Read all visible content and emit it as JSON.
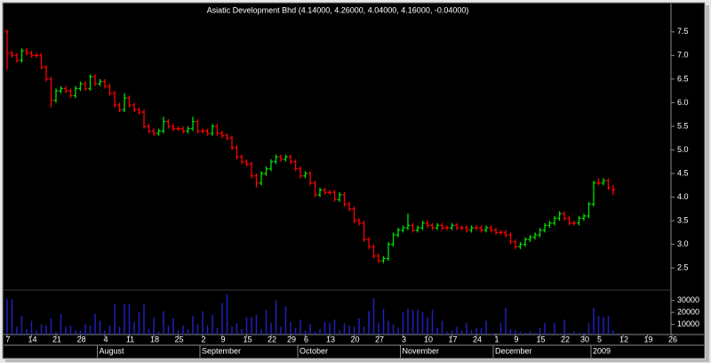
{
  "chart_data": {
    "type": "ohlc",
    "title": "Asiatic Development Bhd (4.14000, 4.26000, 4.04000, 4.16000, -0.04000)",
    "categories": [
      "7",
      null,
      null,
      null,
      null,
      "14",
      null,
      null,
      null,
      null,
      "21",
      null,
      null,
      null,
      null,
      "28",
      null,
      null,
      null,
      null,
      "4",
      null,
      null,
      null,
      null,
      "11",
      null,
      null,
      null,
      null,
      "18",
      null,
      null,
      null,
      null,
      "25",
      null,
      null,
      null,
      null,
      "2",
      null,
      null,
      null,
      "9",
      null,
      null,
      null,
      null,
      "15",
      null,
      null,
      null,
      null,
      "22",
      null,
      null,
      null,
      "29",
      null,
      null,
      "6",
      null,
      null,
      null,
      null,
      "13",
      null,
      null,
      null,
      null,
      "20",
      null,
      null,
      null,
      null,
      "27",
      null,
      null,
      null,
      null,
      "3",
      null,
      null,
      null,
      null,
      "10",
      null,
      null,
      null,
      null,
      "17",
      null,
      null,
      null,
      null,
      "24",
      null,
      null,
      null,
      "1",
      null,
      null,
      null,
      "9",
      null,
      null,
      null,
      null,
      "15",
      null,
      null,
      null,
      null,
      "22",
      null,
      null,
      null,
      "30",
      null,
      null,
      "5",
      null,
      null,
      null,
      null,
      "12",
      null,
      null,
      null,
      null,
      "19",
      null,
      null,
      null,
      null,
      "26"
    ],
    "months": [
      null,
      null,
      null,
      null,
      null,
      null,
      null,
      null,
      null,
      null,
      null,
      null,
      null,
      null,
      null,
      null,
      null,
      null,
      null,
      "August",
      null,
      null,
      null,
      null,
      null,
      null,
      null,
      null,
      null,
      null,
      null,
      null,
      null,
      null,
      null,
      null,
      null,
      null,
      null,
      null,
      "September",
      null,
      null,
      null,
      null,
      null,
      null,
      null,
      null,
      null,
      null,
      null,
      null,
      null,
      null,
      null,
      null,
      null,
      null,
      null,
      "October",
      null,
      null,
      null,
      null,
      null,
      null,
      null,
      null,
      null,
      null,
      null,
      null,
      null,
      null,
      null,
      null,
      null,
      null,
      null,
      null,
      "November",
      null,
      null,
      null,
      null,
      null,
      null,
      null,
      null,
      null,
      null,
      null,
      null,
      null,
      null,
      null,
      null,
      null,
      null,
      "December",
      null,
      null,
      null,
      null,
      null,
      null,
      null,
      null,
      null,
      null,
      null,
      null,
      null,
      null,
      null,
      null,
      null,
      null,
      null,
      "2009",
      null,
      null,
      null,
      null,
      null,
      null,
      null,
      null,
      null,
      null,
      null,
      null,
      null,
      null,
      null,
      null
    ],
    "open": [
      7.5,
      7.05,
      7.0,
      6.9,
      7.1,
      7.05,
      7.0,
      7.0,
      6.75,
      6.5,
      6.05,
      6.25,
      6.3,
      6.25,
      6.15,
      6.3,
      6.4,
      6.3,
      6.55,
      6.4,
      6.45,
      6.35,
      6.2,
      5.95,
      5.85,
      6.1,
      5.95,
      5.85,
      5.8,
      5.5,
      5.4,
      5.35,
      5.4,
      5.6,
      5.5,
      5.45,
      5.45,
      5.4,
      5.45,
      5.6,
      5.4,
      5.4,
      5.35,
      5.5,
      5.35,
      5.3,
      5.25,
      5.05,
      4.85,
      4.75,
      4.7,
      4.45,
      4.3,
      4.5,
      4.6,
      4.75,
      4.85,
      4.8,
      4.85,
      4.75,
      4.6,
      4.45,
      4.5,
      4.3,
      4.05,
      4.15,
      4.1,
      4.1,
      3.95,
      4.05,
      3.85,
      3.75,
      3.5,
      3.45,
      3.1,
      2.95,
      2.75,
      2.65,
      2.7,
      3.0,
      3.2,
      3.3,
      3.35,
      3.4,
      3.3,
      3.35,
      3.45,
      3.4,
      3.35,
      3.4,
      3.35,
      3.35,
      3.4,
      3.35,
      3.35,
      3.3,
      3.35,
      3.35,
      3.3,
      3.35,
      3.3,
      3.25,
      3.25,
      3.2,
      3.05,
      2.95,
      3.0,
      3.1,
      3.15,
      3.2,
      3.3,
      3.4,
      3.45,
      3.55,
      3.65,
      3.55,
      3.45,
      3.45,
      3.55,
      3.6,
      3.85,
      4.3,
      4.3,
      4.35,
      4.14,
      null,
      null,
      null,
      null,
      null,
      null,
      null,
      null,
      null,
      null,
      null,
      null
    ],
    "high": [
      7.55,
      7.1,
      7.05,
      7.15,
      7.15,
      7.1,
      7.05,
      7.05,
      6.8,
      6.55,
      6.3,
      6.35,
      6.35,
      6.3,
      6.35,
      6.45,
      6.45,
      6.6,
      6.6,
      6.5,
      6.5,
      6.4,
      6.25,
      6.0,
      6.2,
      6.15,
      6.0,
      5.9,
      5.85,
      5.55,
      5.45,
      5.45,
      5.7,
      5.65,
      5.55,
      5.5,
      5.5,
      5.5,
      5.7,
      5.65,
      5.45,
      5.45,
      5.55,
      5.55,
      5.4,
      5.35,
      5.3,
      5.1,
      4.9,
      4.8,
      4.75,
      4.5,
      4.55,
      4.65,
      4.8,
      4.9,
      4.9,
      4.9,
      4.9,
      4.8,
      4.65,
      4.55,
      4.55,
      4.35,
      4.2,
      4.2,
      4.15,
      4.15,
      4.1,
      4.1,
      3.9,
      3.8,
      3.55,
      3.5,
      3.15,
      3.0,
      2.8,
      2.75,
      3.05,
      3.25,
      3.35,
      3.4,
      3.65,
      3.45,
      3.4,
      3.5,
      3.5,
      3.45,
      3.45,
      3.45,
      3.4,
      3.45,
      3.45,
      3.4,
      3.4,
      3.4,
      3.4,
      3.4,
      3.4,
      3.4,
      3.35,
      3.3,
      3.3,
      3.25,
      3.1,
      3.05,
      3.15,
      3.2,
      3.25,
      3.35,
      3.45,
      3.5,
      3.6,
      3.7,
      3.7,
      3.6,
      3.5,
      3.6,
      3.65,
      3.9,
      4.35,
      4.4,
      4.4,
      4.4,
      4.26,
      null,
      null,
      null,
      null,
      null,
      null,
      null,
      null,
      null,
      null,
      null,
      null
    ],
    "low": [
      6.7,
      6.95,
      6.85,
      6.85,
      7.0,
      6.95,
      6.95,
      6.7,
      6.45,
      5.9,
      6.0,
      6.2,
      6.2,
      6.1,
      6.1,
      6.25,
      6.25,
      6.25,
      6.35,
      6.35,
      6.3,
      6.15,
      5.9,
      5.8,
      5.8,
      5.9,
      5.8,
      5.75,
      5.45,
      5.35,
      5.3,
      5.3,
      5.35,
      5.45,
      5.4,
      5.4,
      5.35,
      5.35,
      5.4,
      5.35,
      5.35,
      5.3,
      5.3,
      5.3,
      5.25,
      5.2,
      5.0,
      4.8,
      4.7,
      4.65,
      4.4,
      4.2,
      4.25,
      4.45,
      4.55,
      4.7,
      4.75,
      4.75,
      4.7,
      4.55,
      4.4,
      4.4,
      4.25,
      4.0,
      4.0,
      4.05,
      4.05,
      3.9,
      3.9,
      3.8,
      3.7,
      3.45,
      3.4,
      3.05,
      2.9,
      2.7,
      2.6,
      2.6,
      2.65,
      2.95,
      3.15,
      3.25,
      3.3,
      3.25,
      3.25,
      3.3,
      3.35,
      3.3,
      3.3,
      3.3,
      3.3,
      3.3,
      3.3,
      3.3,
      3.25,
      3.25,
      3.3,
      3.25,
      3.25,
      3.25,
      3.2,
      3.2,
      3.15,
      3.0,
      2.9,
      2.9,
      2.95,
      3.05,
      3.1,
      3.15,
      3.25,
      3.35,
      3.4,
      3.5,
      3.5,
      3.4,
      3.4,
      3.4,
      3.5,
      3.55,
      3.8,
      4.25,
      4.25,
      4.15,
      4.04,
      null,
      null,
      null,
      null,
      null,
      null,
      null,
      null,
      null,
      null,
      null,
      null
    ],
    "close": [
      7.05,
      7.0,
      6.9,
      7.1,
      7.05,
      7.0,
      7.0,
      6.75,
      6.5,
      6.05,
      6.25,
      6.3,
      6.25,
      6.15,
      6.3,
      6.4,
      6.3,
      6.55,
      6.4,
      6.45,
      6.35,
      6.2,
      5.95,
      5.85,
      6.1,
      5.95,
      5.85,
      5.8,
      5.5,
      5.4,
      5.35,
      5.4,
      5.6,
      5.5,
      5.45,
      5.45,
      5.4,
      5.45,
      5.6,
      5.4,
      5.4,
      5.35,
      5.5,
      5.35,
      5.3,
      5.25,
      5.05,
      4.85,
      4.75,
      4.7,
      4.45,
      4.3,
      4.5,
      4.6,
      4.75,
      4.85,
      4.8,
      4.85,
      4.75,
      4.6,
      4.45,
      4.5,
      4.3,
      4.05,
      4.15,
      4.1,
      4.1,
      3.95,
      4.05,
      3.85,
      3.75,
      3.5,
      3.45,
      3.1,
      2.95,
      2.75,
      2.65,
      2.7,
      3.0,
      3.2,
      3.3,
      3.35,
      3.4,
      3.3,
      3.35,
      3.45,
      3.4,
      3.35,
      3.4,
      3.35,
      3.35,
      3.4,
      3.35,
      3.35,
      3.3,
      3.35,
      3.35,
      3.3,
      3.35,
      3.3,
      3.25,
      3.25,
      3.2,
      3.05,
      2.95,
      3.0,
      3.1,
      3.15,
      3.2,
      3.3,
      3.4,
      3.45,
      3.55,
      3.65,
      3.55,
      3.45,
      3.45,
      3.55,
      3.6,
      3.85,
      4.3,
      4.3,
      4.35,
      4.2,
      4.16,
      null,
      null,
      null,
      null,
      null,
      null,
      null,
      null,
      null,
      null,
      null,
      null
    ],
    "volume": [
      31000,
      31000,
      8000,
      17000,
      6000,
      13000,
      5000,
      10000,
      9000,
      15000,
      4000,
      19000,
      8000,
      9000,
      5000,
      5000,
      10000,
      9000,
      19000,
      13000,
      5000,
      9000,
      27000,
      8000,
      27000,
      27000,
      12000,
      20000,
      27000,
      6000,
      16000,
      4000,
      21000,
      9000,
      15000,
      5000,
      9000,
      6000,
      17000,
      10000,
      21000,
      9000,
      18000,
      7000,
      28000,
      35000,
      8000,
      11000,
      6000,
      16000,
      16000,
      18000,
      6000,
      22000,
      11000,
      30000,
      8000,
      25000,
      12000,
      7000,
      14000,
      5000,
      10000,
      4000,
      6000,
      12000,
      11000,
      14000,
      5000,
      11000,
      9000,
      8000,
      15000,
      8000,
      21000,
      32000,
      11000,
      23000,
      13000,
      10000,
      7000,
      20000,
      23000,
      22000,
      22000,
      20000,
      16000,
      22000,
      7000,
      13000,
      4000,
      5000,
      8000,
      5000,
      11000,
      5000,
      7000,
      7000,
      13000,
      2000,
      3000,
      11000,
      24000,
      6000,
      5000,
      4000,
      3000,
      4000,
      3000,
      7000,
      11000,
      3000,
      11000,
      2000,
      14000,
      3000,
      4000,
      3000,
      3000,
      11000,
      24000,
      17000,
      16000,
      17000,
      5000,
      null,
      null,
      null,
      null,
      null,
      null,
      null,
      null,
      null,
      null,
      null,
      null
    ],
    "ylim": [
      2.05,
      8.1
    ],
    "yticks": [
      2.5,
      {
        "value": 3,
        "label": "3.0"
      },
      3.5,
      {
        "value": 4,
        "label": "4.0"
      },
      4.5,
      {
        "value": 5,
        "label": "5.0"
      },
      5.5,
      {
        "value": 6,
        "label": "6.0"
      },
      6.5,
      {
        "value": 7,
        "label": "7.0"
      },
      7.5
    ],
    "volume_ylim": [
      0,
      38000
    ],
    "volume_yticks": [
      10000,
      20000,
      30000
    ],
    "up_color": "#00e000",
    "down_color": "#ff0000",
    "volume_color": "#2020c0"
  }
}
